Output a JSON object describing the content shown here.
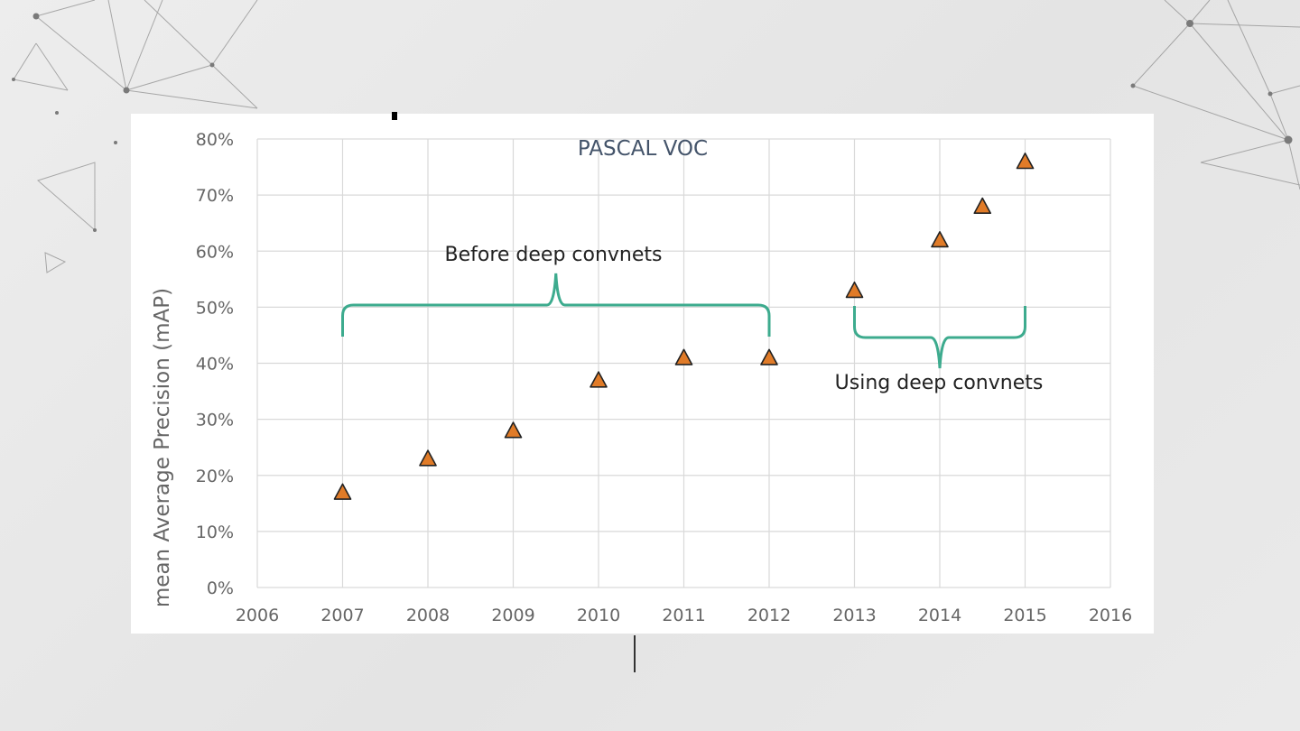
{
  "chart_data": {
    "type": "scatter",
    "title": "PASCAL VOC",
    "ylabel": "mean Average Precision (mAP)",
    "xlabel": "",
    "xlim": [
      2006,
      2016
    ],
    "ylim": [
      0,
      80
    ],
    "x_ticks": [
      "2006",
      "2007",
      "2008",
      "2009",
      "2010",
      "2011",
      "2012",
      "2013",
      "2014",
      "2015",
      "2016"
    ],
    "y_ticks": [
      "0%",
      "10%",
      "20%",
      "30%",
      "40%",
      "50%",
      "60%",
      "70%",
      "80%"
    ],
    "grid": true,
    "marker": "triangle",
    "marker_color": "#e07b28",
    "bracket_color": "#3dab8e",
    "points": [
      {
        "x": 2007,
        "y": 17
      },
      {
        "x": 2008,
        "y": 23
      },
      {
        "x": 2009,
        "y": 28
      },
      {
        "x": 2010,
        "y": 37
      },
      {
        "x": 2011,
        "y": 41
      },
      {
        "x": 2012,
        "y": 41
      },
      {
        "x": 2013,
        "y": 53
      },
      {
        "x": 2014,
        "y": 62
      },
      {
        "x": 2014.5,
        "y": 68
      },
      {
        "x": 2015,
        "y": 76
      }
    ],
    "annotations": [
      {
        "text": "Before deep convnets",
        "from_x": 2007,
        "to_x": 2012
      },
      {
        "text": "Using deep convnets",
        "from_x": 2013,
        "to_x": 2015
      }
    ]
  }
}
